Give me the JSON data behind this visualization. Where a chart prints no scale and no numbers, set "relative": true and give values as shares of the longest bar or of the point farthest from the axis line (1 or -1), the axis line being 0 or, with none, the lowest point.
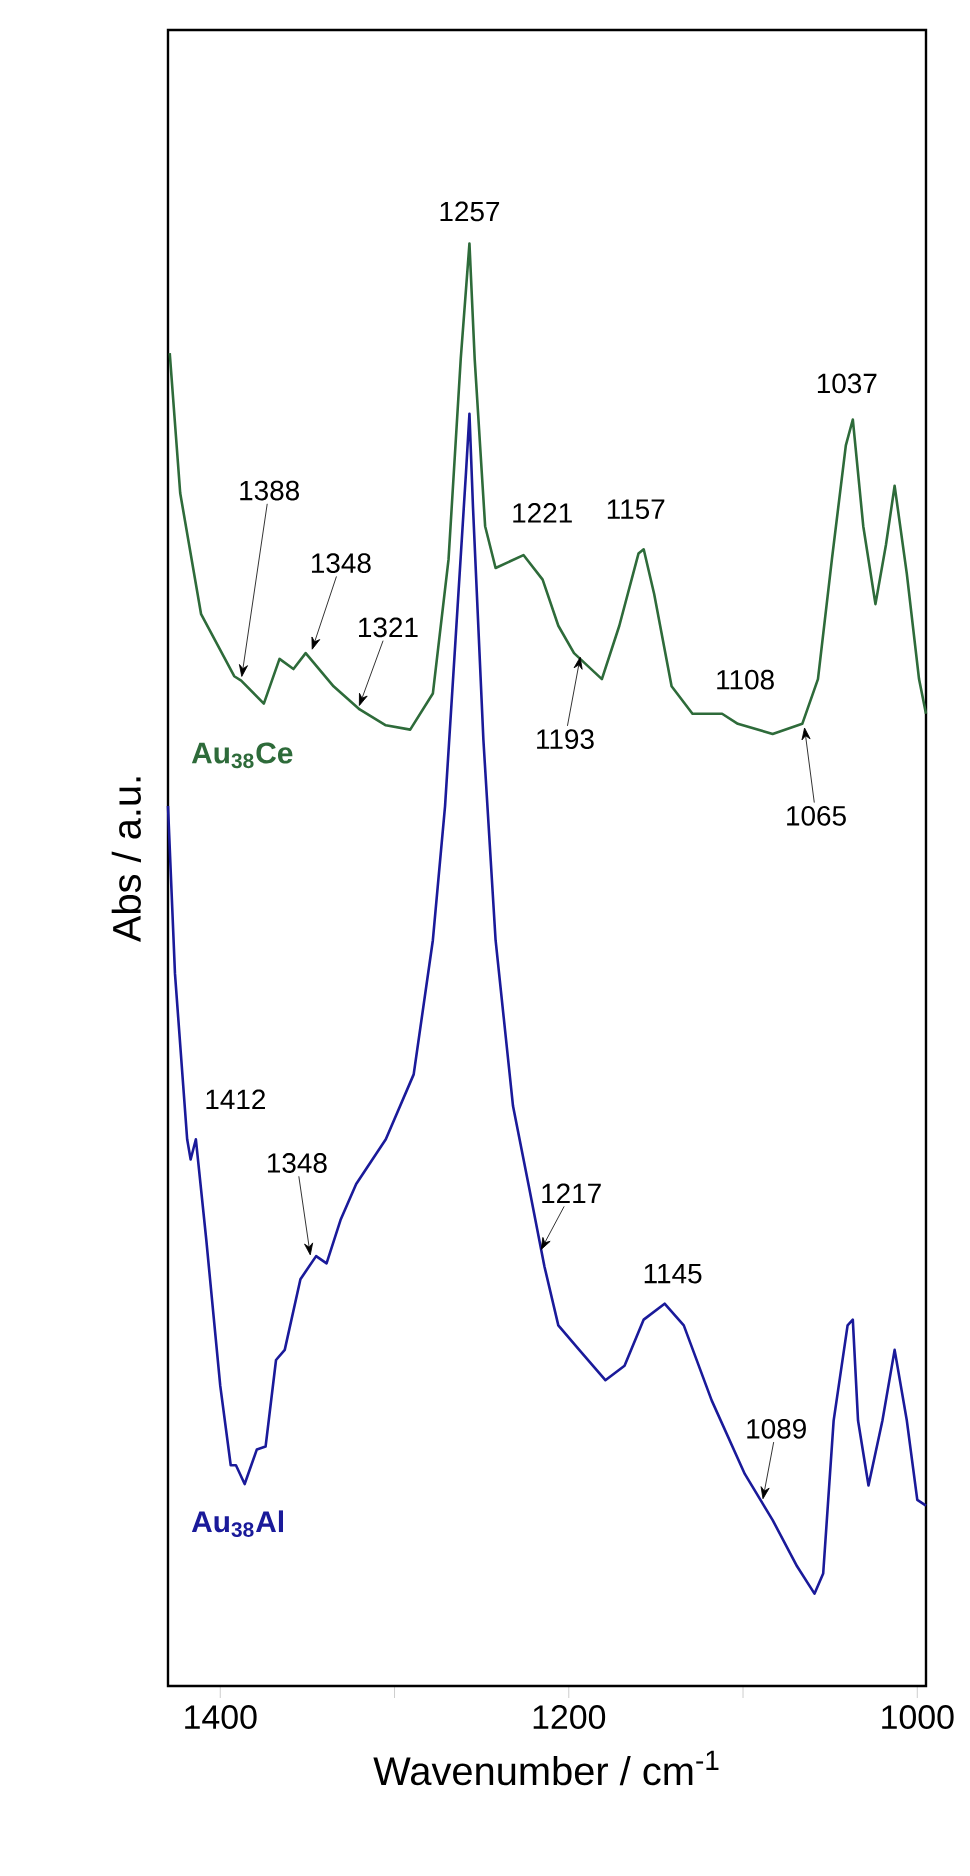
{
  "chart_data": {
    "type": "line",
    "relative": true,
    "xlabel": "Wavenumber / cm$^{-1}$",
    "ylabel": "Abs / a.u.",
    "xlim": [
      1430,
      995
    ],
    "xticks": [
      1400,
      {
        "value": 1300,
        "label": null
      },
      1200,
      {
        "value": 1100,
        "label": null
      },
      1000
    ],
    "tick_labels": "x",
    "grid": false,
    "legend": false,
    "marker": "none",
    "line_style": "solid",
    "series": [
      {
        "name": "Au$_{38}$Ce",
        "color": "#2e6b3a",
        "x": [
          1429,
          1423,
          1411,
          1392,
          1388,
          1375,
          1366,
          1358,
          1351,
          1335,
          1320,
          1305,
          1291,
          1278,
          1269,
          1262,
          1257,
          1254,
          1248,
          1242,
          1226,
          1215,
          1206,
          1197,
          1181,
          1171,
          1160,
          1157,
          1151,
          1141,
          1129,
          1112,
          1103,
          1083,
          1066,
          1057,
          1049,
          1041,
          1037,
          1031,
          1024,
          1018,
          1013,
          1006,
          999,
          995
        ],
        "values": [
          0.924,
          0.827,
          0.743,
          0.7,
          0.697,
          0.681,
          0.712,
          0.705,
          0.716,
          0.693,
          0.677,
          0.666,
          0.663,
          0.688,
          0.781,
          0.92,
          1.0,
          0.92,
          0.804,
          0.775,
          0.784,
          0.767,
          0.735,
          0.716,
          0.698,
          0.735,
          0.785,
          0.788,
          0.757,
          0.693,
          0.674,
          0.674,
          0.667,
          0.66,
          0.667,
          0.698,
          0.781,
          0.86,
          0.878,
          0.804,
          0.75,
          0.791,
          0.832,
          0.771,
          0.698,
          0.674
        ]
      },
      {
        "name": "Au$_{38}$Al",
        "color": "#1a1a9a",
        "x": [
          1430,
          1426,
          1419,
          1417,
          1414,
          1408,
          1400,
          1394,
          1391,
          1386,
          1379,
          1374,
          1368,
          1363,
          1354,
          1345,
          1339,
          1331,
          1322,
          1305,
          1289,
          1278,
          1271,
          1265,
          1259,
          1257,
          1255,
          1249,
          1242,
          1232,
          1223,
          1214,
          1206,
          1194,
          1179,
          1168,
          1157,
          1145,
          1134,
          1118,
          1099,
          1083,
          1069,
          1059,
          1054,
          1048,
          1040,
          1037,
          1034,
          1028,
          1020,
          1013,
          1006,
          1000,
          995
        ],
        "values": [
          0.61,
          0.494,
          0.379,
          0.365,
          0.379,
          0.309,
          0.208,
          0.153,
          0.153,
          0.14,
          0.164,
          0.166,
          0.226,
          0.233,
          0.282,
          0.298,
          0.293,
          0.323,
          0.348,
          0.379,
          0.424,
          0.517,
          0.61,
          0.725,
          0.841,
          0.882,
          0.818,
          0.656,
          0.517,
          0.402,
          0.347,
          0.291,
          0.25,
          0.233,
          0.212,
          0.222,
          0.254,
          0.265,
          0.25,
          0.198,
          0.147,
          0.115,
          0.083,
          0.064,
          0.078,
          0.184,
          0.25,
          0.254,
          0.184,
          0.139,
          0.184,
          0.233,
          0.184,
          0.129,
          0.125
        ]
      }
    ],
    "annotations": [
      {
        "text": "1257",
        "x": 1257,
        "y": 1.0
      },
      {
        "text": "1388",
        "x": 1388,
        "y": 0.697
      },
      {
        "text": "1348",
        "x": 1348,
        "y": 0.716
      },
      {
        "text": "1321",
        "x": 1321,
        "y": 0.677
      },
      {
        "text": "1221",
        "x": 1221,
        "y": 0.78
      },
      {
        "text": "1157",
        "x": 1157,
        "y": 0.788
      },
      {
        "text": "1193",
        "x": 1193,
        "y": 0.716
      },
      {
        "text": "1108",
        "x": 1108,
        "y": 0.674
      },
      {
        "text": "1065",
        "x": 1065,
        "y": 0.667
      },
      {
        "text": "1037",
        "x": 1037,
        "y": 0.878
      },
      {
        "text": "1412",
        "x": 1412,
        "y": 0.379
      },
      {
        "text": "1348",
        "x": 1348,
        "y": 0.296
      },
      {
        "text": "1217",
        "x": 1217,
        "y": 0.3
      },
      {
        "text": "1145",
        "x": 1145,
        "y": 0.265
      },
      {
        "text": "1089",
        "x": 1089,
        "y": 0.127
      }
    ]
  }
}
